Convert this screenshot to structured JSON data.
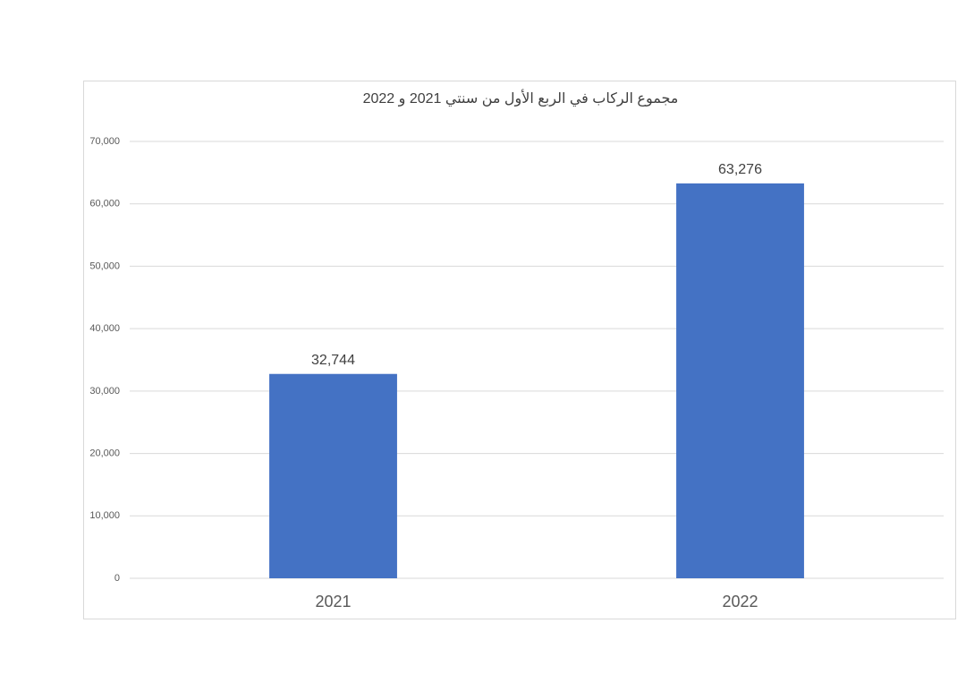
{
  "chart_data": {
    "type": "bar",
    "title": "مجموع الركاب في الربع الأول من سنتي 2021 و 2022",
    "categories": [
      "2021",
      "2022"
    ],
    "values": [
      32744,
      63276
    ],
    "value_labels": [
      "32,744",
      "63,276"
    ],
    "color": "#4472c4",
    "ylim": [
      0,
      70000
    ],
    "yticks": [
      0,
      {
        "value": 10000,
        "label": "10,000"
      },
      {
        "value": 20000,
        "label": "20,000"
      },
      {
        "value": 30000,
        "label": "30,000"
      },
      {
        "value": 40000,
        "label": "40,000"
      },
      {
        "value": 50000,
        "label": "50,000"
      },
      {
        "value": 60000,
        "label": "60,000"
      },
      {
        "value": 70000,
        "label": "70,000"
      }
    ],
    "grid": true
  }
}
